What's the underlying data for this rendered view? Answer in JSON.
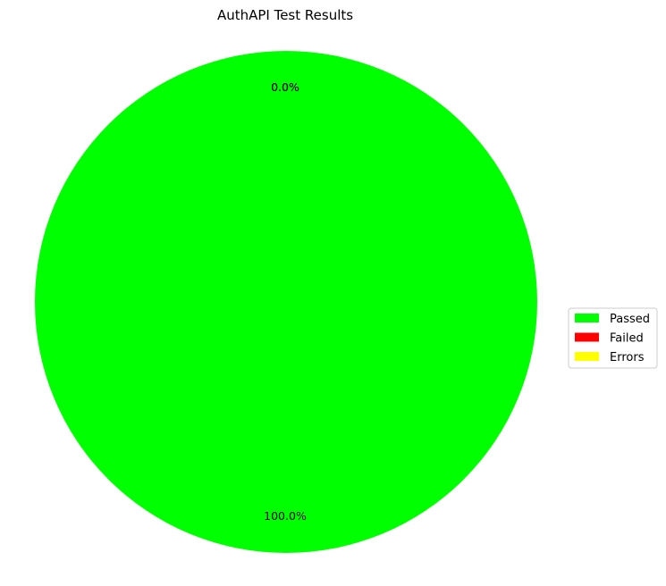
{
  "chart_data": {
    "type": "pie",
    "title": "AuthAPI Test Results",
    "slices": [
      {
        "name": "Passed",
        "value": 100.0,
        "label": "100.0%",
        "color": "#00ff00"
      },
      {
        "name": "Failed",
        "value": 0.0,
        "label": "0.0%",
        "color": "#ff0000"
      },
      {
        "name": "Errors",
        "value": 0.0,
        "label": "0.0%",
        "color": "#ffff00"
      }
    ],
    "legend_placement": "center-right"
  }
}
